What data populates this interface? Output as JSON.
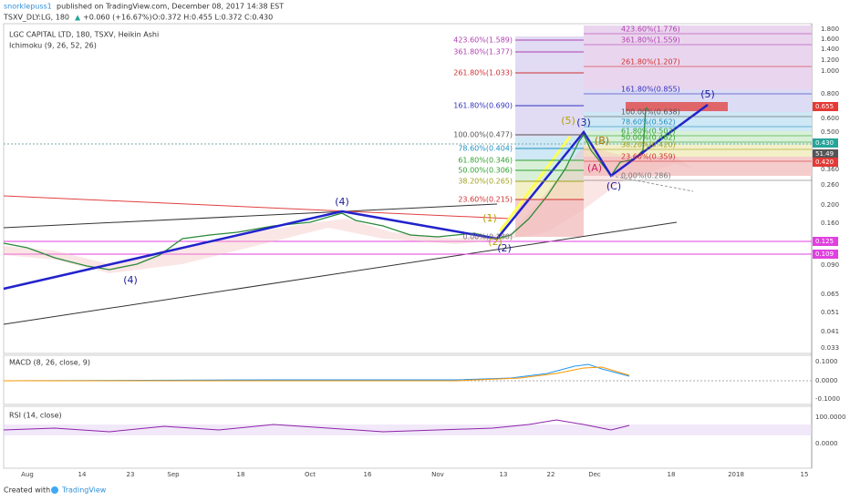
{
  "header": {
    "author": "snorklepuss1",
    "published": "published on TradingView.com, December 08, 2017 14:38 EST",
    "symbol": "TSXV_DLY:LG, 180",
    "change": "+0.060 (+16.67%)",
    "ohlc": "O:0.372 H:0.455 L:0.372 C:0.430"
  },
  "main_pane": {
    "legend": [
      "LGC CAPITAL LTD, 180, TSXV, Heikin Ashi",
      "Ichimoku (9, 26, 52, 26)"
    ],
    "price_ticks": [
      "1.800",
      "1.600",
      "1.400",
      "1.200",
      "1.000",
      "0.800",
      "0.600",
      "0.500",
      "0.360",
      "0.260",
      "0.200",
      "0.160",
      "0.090",
      "0.065",
      "0.051",
      "0.041",
      "0.033"
    ],
    "price_badges": [
      "0.655",
      "0.430",
      "51.49",
      "0.420",
      "0.125",
      "0.109"
    ],
    "fib_left": [
      "423.60%(1.589)",
      "361.80%(1.377)",
      "261.80%(1.033)",
      "161.80%(0.690)",
      "100.00%(0.477)",
      "78.60%(0.404)",
      "61.80%(0.346)",
      "50.00%(0.306)",
      "38.20%(0.265)",
      "23.60%(0.215)",
      "0.00%(0.180)"
    ],
    "fib_right": [
      "423.60%(1.776)",
      "361.80%(1.559)",
      "261.80%(1.207)",
      "161.80%(0.855)",
      "100.00%(0.638)",
      "78.60%(0.562)",
      "61.80%(0.503)",
      "50.00%(0.462)",
      "38.20%(0.420)",
      "23.60%(0.359)",
      "0.00%(0.286)"
    ],
    "waves": [
      "(4)",
      "(4)",
      "(1)",
      "(2)",
      "(2)",
      "(5)",
      "(3)",
      "(A)",
      "(B)",
      "(C)",
      "(5)"
    ]
  },
  "macd_pane": {
    "legend": "MACD (8, 26, close, 9)",
    "ticks": [
      "0.1000",
      "0.0000",
      "-0.1000"
    ]
  },
  "rsi_pane": {
    "legend": "RSI (14, close)",
    "ticks": [
      "100.0000",
      "0.0000"
    ]
  },
  "time_axis": [
    "Aug",
    "14",
    "23",
    "Sep",
    "18",
    "Oct",
    "16",
    "Nov",
    "13",
    "22",
    "Dec",
    "18",
    "2018",
    "15"
  ],
  "footer": {
    "created": "Created with",
    "brand": "TradingView"
  }
}
